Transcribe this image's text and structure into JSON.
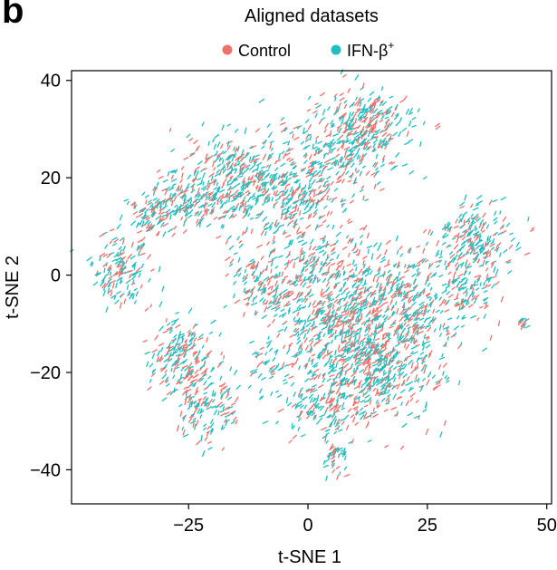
{
  "figure": {
    "panel_label": "b"
  },
  "colors": {
    "control": "#F0706A",
    "ifn": "#1DBFC0",
    "axis": "#000000"
  },
  "chart_data": {
    "type": "scatter",
    "title": "Aligned datasets",
    "xlabel": "t-SNE 1",
    "ylabel": "t-SNE 2",
    "xlim": [
      -49.5,
      51
    ],
    "ylim": [
      -47,
      42
    ],
    "xticks": [
      -25,
      0,
      25,
      50
    ],
    "xtick_labels": [
      "−25",
      "0",
      "25",
      "50"
    ],
    "yticks": [
      -40,
      -20,
      0,
      20,
      40
    ],
    "ytick_labels": [
      "−40",
      "−20",
      "0",
      "20",
      "40"
    ],
    "grid": false,
    "legend_position": "top",
    "legend": [
      {
        "name": "Control",
        "color_key": "control"
      },
      {
        "name": "IFN-β",
        "superscript": "+",
        "color_key": "ifn"
      }
    ],
    "clusters": [
      {
        "cx": -39,
        "cy": 1,
        "sx": 3,
        "sy": 3.5,
        "n": 140
      },
      {
        "cx": -33,
        "cy": 12,
        "sx": 3,
        "sy": 2.5,
        "n": 90
      },
      {
        "cx": -26,
        "cy": 15,
        "sx": 4,
        "sy": 2.5,
        "n": 120
      },
      {
        "cx": -15,
        "cy": 19,
        "sx": 6,
        "sy": 5,
        "n": 380
      },
      {
        "cx": -3,
        "cy": 17,
        "sx": 5,
        "sy": 6,
        "n": 260
      },
      {
        "cx": 8,
        "cy": 26,
        "sx": 5,
        "sy": 6,
        "n": 280
      },
      {
        "cx": 14,
        "cy": 32,
        "sx": 4,
        "sy": 3,
        "n": 150
      },
      {
        "cx": -7,
        "cy": -5,
        "sx": 4,
        "sy": 1.8,
        "n": 60
      },
      {
        "cx": -10,
        "cy": -1,
        "sx": 3,
        "sy": 3,
        "n": 80
      },
      {
        "cx": 0,
        "cy": 2,
        "sx": 3,
        "sy": 2,
        "n": 60
      },
      {
        "cx": 7,
        "cy": -8,
        "sx": 7,
        "sy": 8,
        "n": 550
      },
      {
        "cx": 20,
        "cy": -8,
        "sx": 7,
        "sy": 7,
        "n": 480
      },
      {
        "cx": 12,
        "cy": -20,
        "sx": 7,
        "sy": 5,
        "n": 380
      },
      {
        "cx": 3,
        "cy": -28,
        "sx": 4,
        "sy": 3.5,
        "n": 110
      },
      {
        "cx": 6,
        "cy": -38,
        "sx": 1.5,
        "sy": 2.5,
        "n": 40
      },
      {
        "cx": 35,
        "cy": 7,
        "sx": 4,
        "sy": 3.5,
        "n": 200
      },
      {
        "cx": 34,
        "cy": -3,
        "sx": 3,
        "sy": 3,
        "n": 80
      },
      {
        "cx": -26,
        "cy": -17,
        "sx": 3.5,
        "sy": 4,
        "n": 200
      },
      {
        "cx": -21,
        "cy": -27,
        "sx": 3,
        "sy": 4,
        "n": 130
      },
      {
        "cx": -9,
        "cy": -19,
        "sx": 2,
        "sy": 3,
        "n": 40
      },
      {
        "cx": 45,
        "cy": -10,
        "sx": 0.5,
        "sy": 0.6,
        "n": 14
      },
      {
        "cx": 15,
        "cy": 27,
        "sx": 0.8,
        "sy": 0.4,
        "n": 8
      }
    ]
  }
}
